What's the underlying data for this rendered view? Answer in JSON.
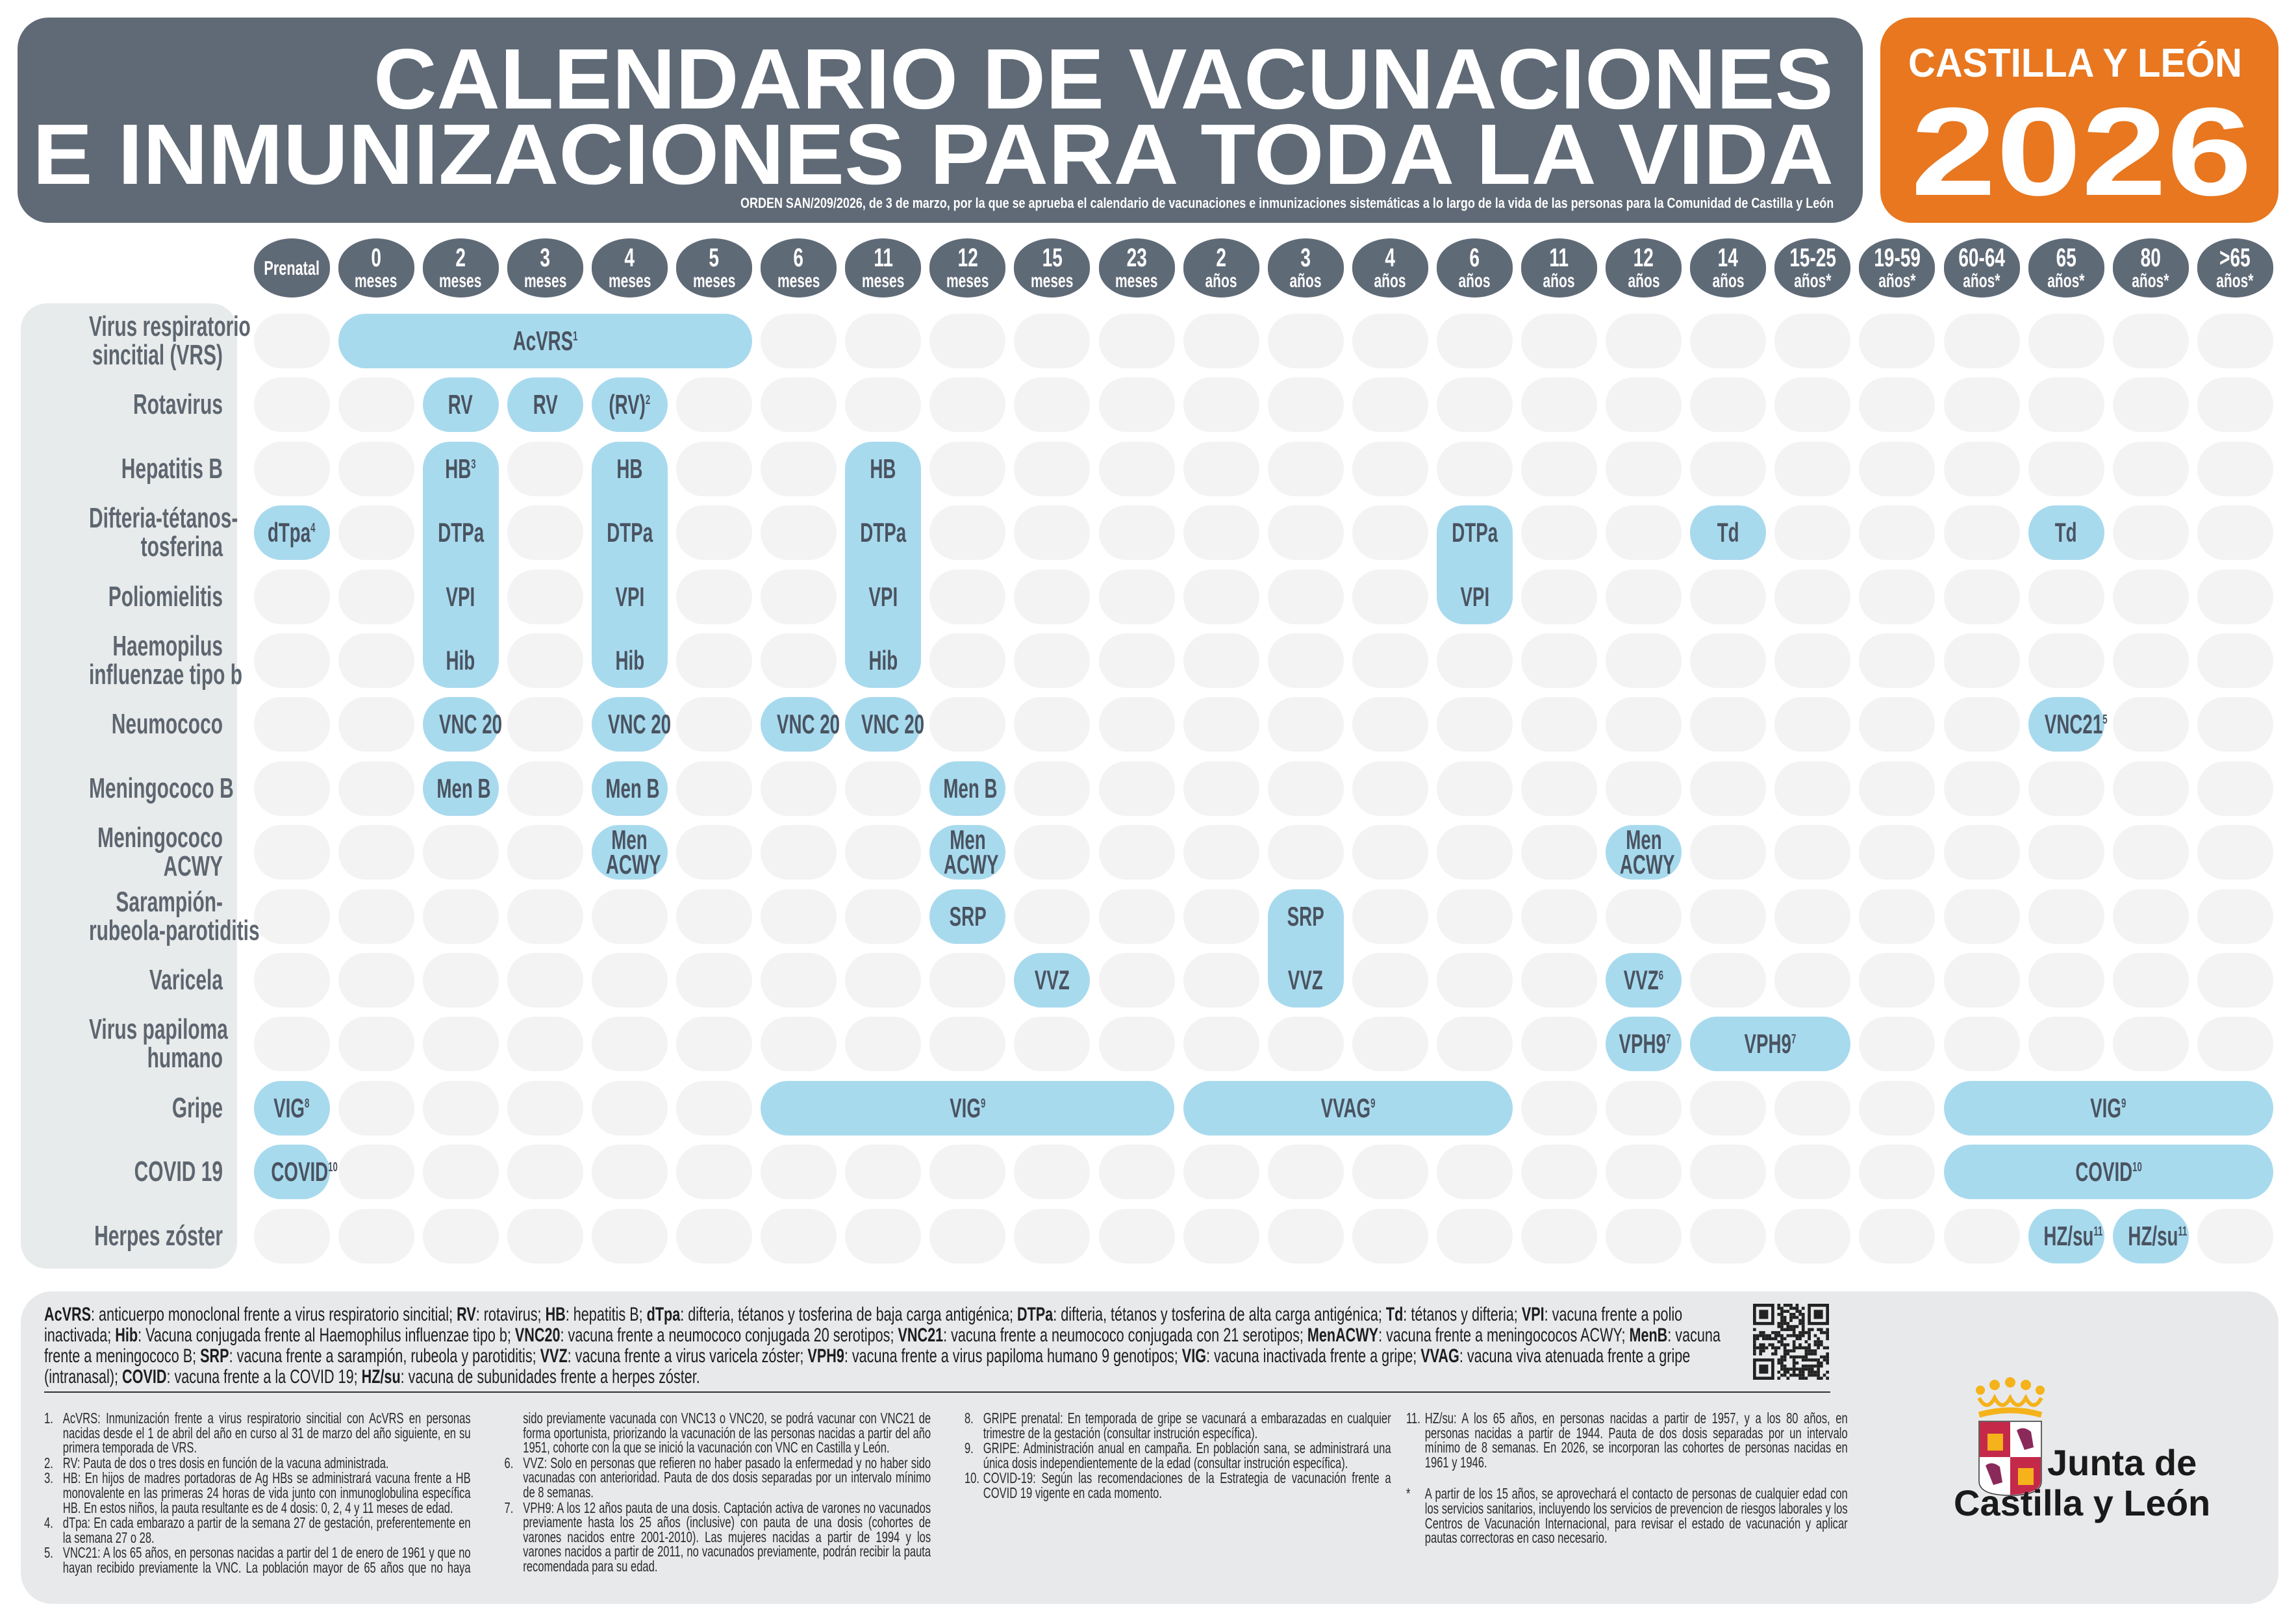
{
  "header": {
    "title_line1": "CALENDARIO DE VACUNACIONES",
    "title_line2": "E INMUNIZACIONES PARA TODA LA VIDA",
    "subtitle": "ORDEN SAN/209/2026, de 3 de marzo, por la que se aprueba el calendario de vacunaciones e inmunizaciones sistemáticas a lo largo de la vida de las personas para la Comunidad de Castilla y León",
    "region": "CASTILLA Y LEÓN",
    "year": "2026"
  },
  "colors": {
    "title_bg": "#5f6a76",
    "region_bg": "#e8771f",
    "vaccine_pill": "#a8daee",
    "empty_cell": "#f3f3f3",
    "label_panel": "#e8ebeb"
  },
  "columns": [
    {
      "id": "pre",
      "top": "Prenatal",
      "unit": ""
    },
    {
      "id": "0m",
      "top": "0",
      "unit": "meses"
    },
    {
      "id": "2m",
      "top": "2",
      "unit": "meses"
    },
    {
      "id": "3m",
      "top": "3",
      "unit": "meses"
    },
    {
      "id": "4m",
      "top": "4",
      "unit": "meses"
    },
    {
      "id": "5m",
      "top": "5",
      "unit": "meses"
    },
    {
      "id": "6m",
      "top": "6",
      "unit": "meses"
    },
    {
      "id": "11m",
      "top": "11",
      "unit": "meses"
    },
    {
      "id": "12m",
      "top": "12",
      "unit": "meses"
    },
    {
      "id": "15m",
      "top": "15",
      "unit": "meses"
    },
    {
      "id": "23m",
      "top": "23",
      "unit": "meses"
    },
    {
      "id": "2a",
      "top": "2",
      "unit": "años"
    },
    {
      "id": "3a",
      "top": "3",
      "unit": "años"
    },
    {
      "id": "4a",
      "top": "4",
      "unit": "años"
    },
    {
      "id": "6a",
      "top": "6",
      "unit": "años"
    },
    {
      "id": "11a",
      "top": "11",
      "unit": "años"
    },
    {
      "id": "12a",
      "top": "12",
      "unit": "años"
    },
    {
      "id": "14a",
      "top": "14",
      "unit": "años"
    },
    {
      "id": "15-25",
      "top": "15-25",
      "unit": "años*"
    },
    {
      "id": "19-59",
      "top": "19-59",
      "unit": "años*"
    },
    {
      "id": "60-64",
      "top": "60-64",
      "unit": "años*"
    },
    {
      "id": "65",
      "top": "65",
      "unit": "años*"
    },
    {
      "id": "80",
      "top": "80",
      "unit": "años*"
    },
    {
      "id": ">65",
      "top": ">65",
      "unit": "años*"
    }
  ],
  "rows": [
    {
      "id": "vrs",
      "label": [
        "Virus respiratorio",
        "sincitial (VRS)"
      ]
    },
    {
      "id": "rota",
      "label": [
        "Rotavirus"
      ]
    },
    {
      "id": "hb",
      "label": [
        "Hepatitis B"
      ]
    },
    {
      "id": "dtp",
      "label": [
        "Difteria-tétanos-",
        "tosferina"
      ]
    },
    {
      "id": "polio",
      "label": [
        "Poliomielitis"
      ]
    },
    {
      "id": "hib",
      "label": [
        "Haemopilus",
        "influenzae tipo b"
      ]
    },
    {
      "id": "neumo",
      "label": [
        "Neumococo"
      ]
    },
    {
      "id": "menb",
      "label": [
        "Meningococo B"
      ]
    },
    {
      "id": "menacwy",
      "label": [
        "Meningococo",
        "ACWY"
      ]
    },
    {
      "id": "srp",
      "label": [
        "Sarampión-",
        "rubeola-parotiditis"
      ]
    },
    {
      "id": "varicela",
      "label": [
        "Varicela"
      ]
    },
    {
      "id": "vph",
      "label": [
        "Virus papiloma",
        "humano"
      ]
    },
    {
      "id": "gripe",
      "label": [
        "Gripe"
      ]
    },
    {
      "id": "covid",
      "label": [
        "COVID 19"
      ]
    },
    {
      "id": "hz",
      "label": [
        "Herpes zóster"
      ]
    }
  ],
  "schedule": [
    {
      "row": "vrs",
      "from": "0m",
      "to": "5m",
      "lines": [
        {
          "t": "AcVRS",
          "sup": "1"
        }
      ]
    },
    {
      "row": "rota",
      "from": "2m",
      "to": "2m",
      "lines": [
        {
          "t": "RV"
        }
      ]
    },
    {
      "row": "rota",
      "from": "3m",
      "to": "3m",
      "lines": [
        {
          "t": "RV"
        }
      ]
    },
    {
      "row": "rota",
      "from": "4m",
      "to": "4m",
      "lines": [
        {
          "t": "(RV)",
          "sup": "2"
        }
      ]
    },
    {
      "row": "hb",
      "row_to": "hib",
      "from": "2m",
      "to": "2m",
      "lines": [
        {
          "t": "HB",
          "sup": "3"
        },
        {
          "t": "DTPa"
        },
        {
          "t": "VPI"
        },
        {
          "t": "Hib"
        }
      ]
    },
    {
      "row": "hb",
      "row_to": "hib",
      "from": "4m",
      "to": "4m",
      "lines": [
        {
          "t": "HB"
        },
        {
          "t": "DTPa"
        },
        {
          "t": "VPI"
        },
        {
          "t": "Hib"
        }
      ]
    },
    {
      "row": "hb",
      "row_to": "hib",
      "from": "11m",
      "to": "11m",
      "lines": [
        {
          "t": "HB"
        },
        {
          "t": "DTPa"
        },
        {
          "t": "VPI"
        },
        {
          "t": "Hib"
        }
      ]
    },
    {
      "row": "dtp",
      "from": "pre",
      "to": "pre",
      "lines": [
        {
          "t": "dTpa",
          "sup": "4"
        }
      ]
    },
    {
      "row": "dtp",
      "row_to": "polio",
      "from": "6a",
      "to": "6a",
      "lines": [
        {
          "t": "DTPa"
        },
        {
          "t": "VPI"
        }
      ]
    },
    {
      "row": "dtp",
      "from": "14a",
      "to": "14a",
      "lines": [
        {
          "t": "Td"
        }
      ]
    },
    {
      "row": "dtp",
      "from": "65",
      "to": "65",
      "lines": [
        {
          "t": "Td"
        }
      ]
    },
    {
      "row": "neumo",
      "from": "2m",
      "to": "2m",
      "lines": [
        {
          "t": "VNC 20"
        }
      ]
    },
    {
      "row": "neumo",
      "from": "4m",
      "to": "4m",
      "lines": [
        {
          "t": "VNC 20"
        }
      ]
    },
    {
      "row": "neumo",
      "from": "6m",
      "to": "6m",
      "lines": [
        {
          "t": "VNC 20"
        }
      ]
    },
    {
      "row": "neumo",
      "from": "11m",
      "to": "11m",
      "lines": [
        {
          "t": "VNC 20"
        }
      ]
    },
    {
      "row": "neumo",
      "from": "65",
      "to": "65",
      "lines": [
        {
          "t": "VNC21",
          "sup": "5"
        }
      ]
    },
    {
      "row": "menb",
      "from": "2m",
      "to": "2m",
      "lines": [
        {
          "t": "Men B"
        }
      ]
    },
    {
      "row": "menb",
      "from": "4m",
      "to": "4m",
      "lines": [
        {
          "t": "Men B"
        }
      ]
    },
    {
      "row": "menb",
      "from": "12m",
      "to": "12m",
      "lines": [
        {
          "t": "Men B"
        }
      ]
    },
    {
      "row": "menacwy",
      "from": "4m",
      "to": "4m",
      "lines": [
        {
          "t": "Men"
        },
        {
          "t": "ACWY"
        }
      ]
    },
    {
      "row": "menacwy",
      "from": "12m",
      "to": "12m",
      "lines": [
        {
          "t": "Men"
        },
        {
          "t": "ACWY"
        }
      ]
    },
    {
      "row": "menacwy",
      "from": "12a",
      "to": "12a",
      "lines": [
        {
          "t": "Men"
        },
        {
          "t": "ACWY"
        }
      ]
    },
    {
      "row": "srp",
      "from": "12m",
      "to": "12m",
      "lines": [
        {
          "t": "SRP"
        }
      ]
    },
    {
      "row": "srp",
      "row_to": "varicela",
      "from": "3a",
      "to": "3a",
      "lines": [
        {
          "t": "SRP"
        },
        {
          "t": "VVZ"
        }
      ]
    },
    {
      "row": "varicela",
      "from": "15m",
      "to": "15m",
      "lines": [
        {
          "t": "VVZ"
        }
      ]
    },
    {
      "row": "varicela",
      "from": "12a",
      "to": "12a",
      "lines": [
        {
          "t": "VVZ",
          "sup": "6"
        }
      ]
    },
    {
      "row": "vph",
      "from": "12a",
      "to": "12a",
      "lines": [
        {
          "t": "VPH9",
          "sup": "7"
        }
      ]
    },
    {
      "row": "vph",
      "from": "14a",
      "to": "15-25",
      "lines": [
        {
          "t": "VPH9",
          "sup": "7"
        }
      ]
    },
    {
      "row": "gripe",
      "from": "pre",
      "to": "pre",
      "lines": [
        {
          "t": "VIG",
          "sup": "8"
        }
      ]
    },
    {
      "row": "gripe",
      "from": "6m",
      "to": "23m",
      "lines": [
        {
          "t": "VIG",
          "sup": "9"
        }
      ]
    },
    {
      "row": "gripe",
      "from": "2a",
      "to": "6a",
      "lines": [
        {
          "t": "VVAG",
          "sup": "9"
        }
      ]
    },
    {
      "row": "gripe",
      "from": "60-64",
      "to": ">65",
      "lines": [
        {
          "t": "VIG",
          "sup": "9"
        }
      ]
    },
    {
      "row": "covid",
      "from": "pre",
      "to": "pre",
      "lines": [
        {
          "t": "COVID",
          "sup": "10"
        }
      ]
    },
    {
      "row": "covid",
      "from": "60-64",
      "to": ">65",
      "lines": [
        {
          "t": "COVID",
          "sup": "10"
        }
      ]
    },
    {
      "row": "hz",
      "from": "65",
      "to": "65",
      "lines": [
        {
          "t": "HZ/su",
          "sup": "11"
        }
      ]
    },
    {
      "row": "hz",
      "from": "80",
      "to": "80",
      "lines": [
        {
          "t": "HZ/su",
          "sup": "11"
        }
      ]
    }
  ],
  "legend": [
    {
      "abbr": "AcVRS",
      "text": "anticuerpo monoclonal frente a virus respiratorio sincitial;"
    },
    {
      "abbr": "RV",
      "text": "rotavirus;"
    },
    {
      "abbr": "HB",
      "text": "hepatitis B;"
    },
    {
      "abbr": "dTpa",
      "text": "difteria, tétanos y tosferina de baja carga antigénica;"
    },
    {
      "abbr": "DTPa",
      "text": "difteria, tétanos y tosferina de alta carga antigénica;"
    },
    {
      "abbr": "Td",
      "text": "tétanos y difteria;"
    },
    {
      "abbr": "VPI",
      "text": "vacuna frente a polio inactivada;"
    },
    {
      "abbr": "Hib",
      "text": "Vacuna conjugada frente al Haemophilus influenzae tipo b;"
    },
    {
      "abbr": "VNC20",
      "text": "vacuna frente a neumococo conjugada 20 serotipos;"
    },
    {
      "abbr": "VNC21",
      "text": "vacuna frente a neumococo conjugada con 21 serotipos;"
    },
    {
      "abbr": "MenACWY",
      "text": "vacuna frente a meningococos ACWY;"
    },
    {
      "abbr": "MenB",
      "text": "vacuna frente a meningococo B;"
    },
    {
      "abbr": "SRP",
      "text": "vacuna frente a sarampión, rubeola y parotiditis;"
    },
    {
      "abbr": "VVZ",
      "text": "vacuna frente a virus varicela zóster;"
    },
    {
      "abbr": "VPH9",
      "text": "vacuna frente a virus papiloma humano 9 genotipos;"
    },
    {
      "abbr": "VIG",
      "text": "vacuna inactivada frente a gripe;"
    },
    {
      "abbr": "VVAG",
      "text": "vacuna viva atenuada frente a gripe (intranasal);"
    },
    {
      "abbr": "COVID",
      "text": "vacuna frente a la COVID 19;"
    },
    {
      "abbr": "HZ/su",
      "text": "vacuna de subunidades frente a herpes zóster."
    }
  ],
  "footnotes": [
    {
      "n": "1.",
      "text": "AcVRS: Inmunización frente a virus respiratorio sincitial con AcVRS en personas nacidas desde el 1 de abril del año en curso al 31 de marzo del año siguiente, en su primera temporada de VRS."
    },
    {
      "n": "2.",
      "text": "RV: Pauta de dos o tres dosis en función de la vacuna administrada."
    },
    {
      "n": "3.",
      "text": "HB: En hijos de madres portadoras de Ag HBs se administrará vacuna frente a HB monovalente en las primeras 24 horas de vida junto con inmunoglobulina específica HB. En estos niños, la pauta resultante es de 4 dosis: 0, 2, 4 y 11 meses de edad."
    },
    {
      "n": "4.",
      "text": "dTpa: En cada embarazo a partir de la semana 27 de gestación, preferentemente en la semana 27 o 28."
    },
    {
      "n": "5.",
      "text": "VNC21: A los 65 años, en personas nacidas a partir del 1 de enero de 1961 y que no hayan recibido previamente la VNC. La población mayor de 65 años que no haya sido previamente vacunada con VNC13 o VNC20, se podrá vacunar con VNC21 de forma oportunista, priorizando la vacunación de las personas nacidas a partir del año 1951, cohorte con la que se inició la vacunación con VNC en Castilla y León."
    },
    {
      "n": "6.",
      "text": "VVZ: Solo en personas que refieren no haber pasado la enfermedad y no haber sido vacunadas con anterioridad. Pauta de dos dosis separadas por un intervalo mínimo de 8 semanas."
    },
    {
      "n": "7.",
      "text": "VPH9: A los 12 años pauta de una dosis. Captación activa de varones no vacunados previamente hasta los 25 años (inclusive) con pauta de una dosis (cohortes de varones nacidos entre 2001-2010). Las mujeres nacidas a partir de 1994 y los varones nacidos a partir de 2011, no vacunados previamente, podrán recibir la pauta recomendada para su edad."
    },
    {
      "n": "8.",
      "text": "GRIPE prenatal: En temporada de gripe se vacunará a embarazadas en cualquier trimestre de la gestación (consultar instrución específica)."
    },
    {
      "n": "9.",
      "text": "GRIPE: Administración anual en campaña. En población sana, se administrará una única dosis independientemente de la edad (consultar instrución específica)."
    },
    {
      "n": "10.",
      "text": "COVID-19: Según las recomendaciones de la Estrategia de vacunación frente a COVID 19 vigente en cada momento."
    }
  ],
  "footnote_11": {
    "n": "11.",
    "text": "HZ/su: A los 65 años, en personas nacidas a partir de 1957, y a los 80 años, en personas nacidas a partir de 1944. Pauta de dos dosis separadas por un intervalo mínimo de 8 semanas. En 2026, se incorporan las cohortes de personas nacidas en 1961 y 1946."
  },
  "footnote_star": {
    "n": "*",
    "text": "A partir de los 15 años, se aprovechará el contacto de personas de cualquier edad con los servicios sanitarios, incluyendo los servicios de prevencion de riesgos laborales y los Centros de Vacunación Internacional, para revisar el estado de vacunación y aplicar pautas correctoras en caso necesario."
  },
  "logo": {
    "line1": "Junta de",
    "line2": "Castilla y León"
  }
}
